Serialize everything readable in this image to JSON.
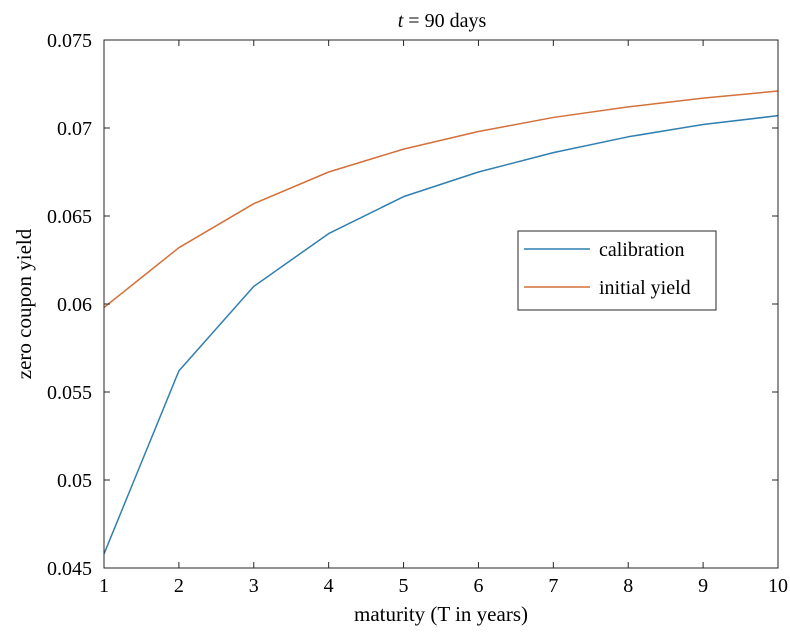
{
  "chart_data": {
    "type": "line",
    "title_var": "t",
    "title_rest": " = 90 days",
    "xlabel": "maturity (T in years)",
    "ylabel": "zero coupon yield",
    "xlim": [
      1,
      10
    ],
    "ylim": [
      0.045,
      0.075
    ],
    "x_ticks": [
      1,
      2,
      3,
      4,
      5,
      6,
      7,
      8,
      9,
      10
    ],
    "y_ticks": [
      "0.045",
      "0.05",
      "0.055",
      "0.06",
      "0.065",
      "0.07",
      "0.075"
    ],
    "x": [
      1,
      2,
      3,
      4,
      5,
      6,
      7,
      8,
      9,
      10
    ],
    "grid": false,
    "legend_position": "right",
    "series": [
      {
        "name": "calibration",
        "color": "#2f7fb0",
        "values": [
          0.0458,
          0.0562,
          0.061,
          0.064,
          0.0661,
          0.0675,
          0.0686,
          0.0695,
          0.0702,
          0.0707
        ]
      },
      {
        "name": "initial yield",
        "color": "#d4703a",
        "values": [
          0.0598,
          0.0632,
          0.0657,
          0.0675,
          0.0688,
          0.0698,
          0.0706,
          0.0712,
          0.0717,
          0.0721
        ]
      }
    ]
  }
}
